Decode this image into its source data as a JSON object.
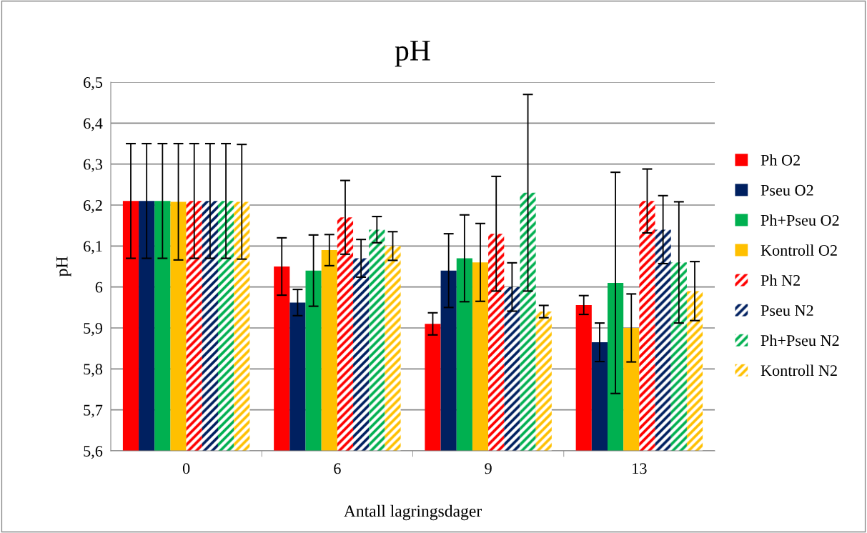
{
  "chart_data": {
    "type": "bar",
    "title": "pH",
    "xlabel": "Antall lagringsdager",
    "ylabel": "pH",
    "categories": [
      "0",
      "6",
      "9",
      "13"
    ],
    "series": [
      {
        "name": "Ph O2",
        "color": "#ff0000",
        "values": [
          6.21,
          6.05,
          5.91,
          5.956
        ],
        "errors": [
          0.14,
          0.07,
          0.027,
          0.023
        ]
      },
      {
        "name": "Pseu O2",
        "color": "#002060",
        "values": [
          6.21,
          5.962,
          6.04,
          5.865
        ],
        "errors": [
          0.14,
          0.032,
          0.09,
          0.047
        ]
      },
      {
        "name": "Ph+Pseu O2",
        "color": "#00b050",
        "values": [
          6.21,
          6.04,
          6.07,
          6.01
        ],
        "errors": [
          0.14,
          0.087,
          0.106,
          0.27
        ]
      },
      {
        "name": "Kontroll O2",
        "color": "#ffc000",
        "values": [
          6.208,
          6.09,
          6.06,
          5.9
        ],
        "errors": [
          0.142,
          0.038,
          0.095,
          0.083
        ]
      },
      {
        "name": "Ph N2",
        "color": "#ff0000",
        "line_style": "dashed",
        "values": [
          6.21,
          6.17,
          6.13,
          6.21
        ],
        "errors": [
          0.14,
          0.09,
          0.14,
          0.078
        ]
      },
      {
        "name": "Pseu N2",
        "color": "#002060",
        "line_style": "dashed",
        "values": [
          6.21,
          6.07,
          6.0,
          6.14
        ],
        "errors": [
          0.14,
          0.046,
          0.059,
          0.083
        ]
      },
      {
        "name": "Ph+Pseu N2",
        "color": "#00b050",
        "line_style": "dashed",
        "values": [
          6.21,
          6.14,
          6.23,
          6.06
        ],
        "errors": [
          0.14,
          0.032,
          0.24,
          0.148
        ]
      },
      {
        "name": "Kontroll N2",
        "color": "#ffc000",
        "line_style": "dashed",
        "values": [
          6.208,
          6.1,
          5.94,
          5.99
        ],
        "errors": [
          0.14,
          0.035,
          0.015,
          0.072
        ]
      }
    ],
    "ylim": [
      5.6,
      6.5
    ],
    "yticks": [
      {
        "value": 5.6,
        "label": "5,6"
      },
      {
        "value": 5.7,
        "label": "5,7"
      },
      {
        "value": 5.8,
        "label": "5,8"
      },
      {
        "value": 5.9,
        "label": "5,9"
      },
      {
        "value": 6.0,
        "label": "6"
      },
      {
        "value": 6.1,
        "label": "6,1"
      },
      {
        "value": 6.2,
        "label": "6,2"
      },
      {
        "value": 6.3,
        "label": "6,3"
      },
      {
        "value": 6.4,
        "label": "6,4"
      },
      {
        "value": 6.5,
        "label": "6,5"
      }
    ],
    "grid": "y",
    "legend": "right"
  }
}
